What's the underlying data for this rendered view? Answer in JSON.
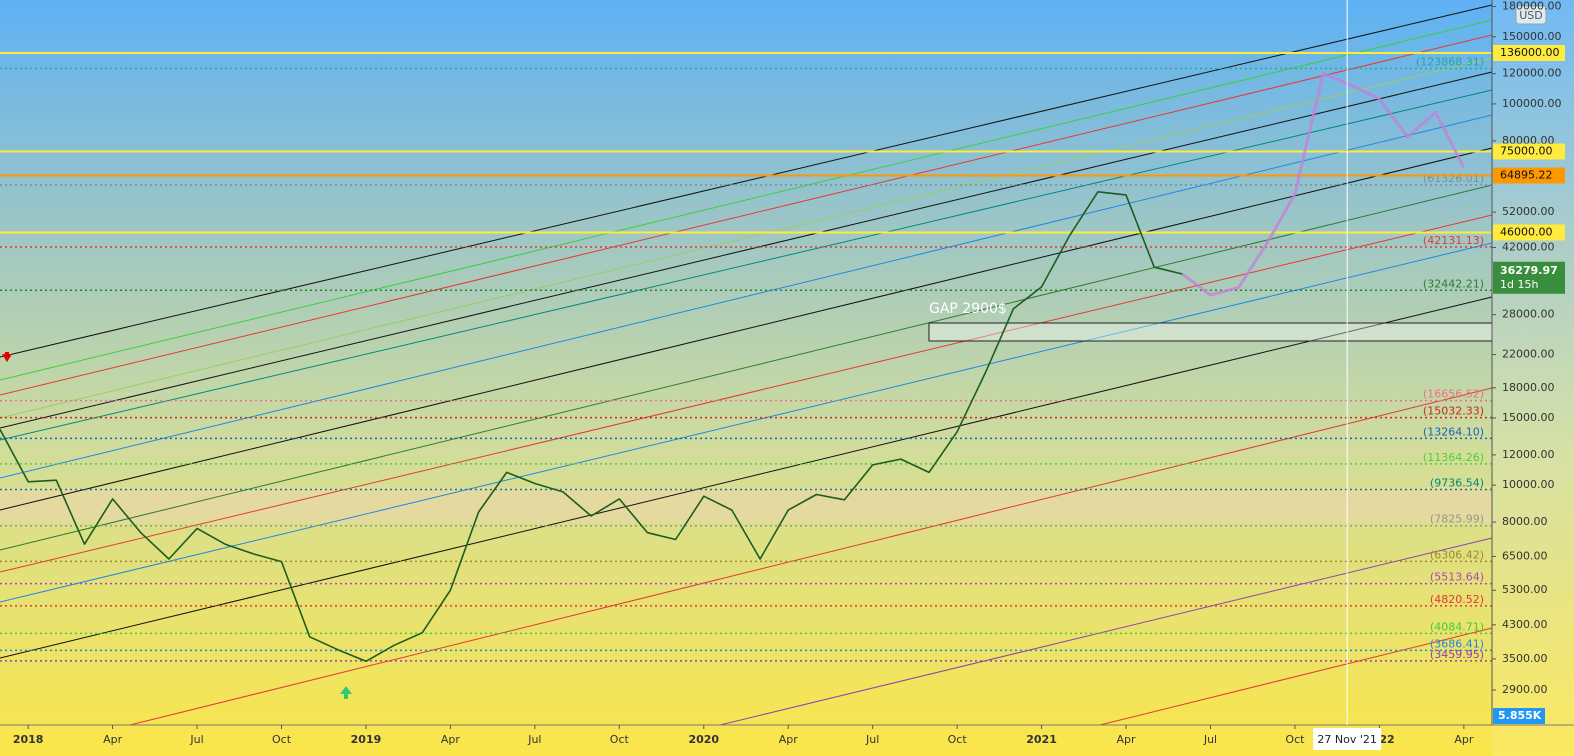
{
  "chart_data": {
    "type": "line",
    "log_scale": true,
    "currency": "USD",
    "xlim": [
      "2017-12",
      "2022-05"
    ],
    "ylim": [
      2348,
      187300
    ],
    "x": [
      "2017-12",
      "2018-01",
      "2018-02",
      "2018-03",
      "2018-04",
      "2018-05",
      "2018-06",
      "2018-07",
      "2018-08",
      "2018-09",
      "2018-10",
      "2018-11",
      "2018-12",
      "2019-01",
      "2019-02",
      "2019-03",
      "2019-04",
      "2019-05",
      "2019-06",
      "2019-07",
      "2019-08",
      "2019-09",
      "2019-10",
      "2019-11",
      "2019-12",
      "2020-01",
      "2020-02",
      "2020-03",
      "2020-04",
      "2020-05",
      "2020-06",
      "2020-07",
      "2020-08",
      "2020-09",
      "2020-10",
      "2020-11",
      "2020-12",
      "2021-01",
      "2021-02",
      "2021-03",
      "2021-04",
      "2021-05",
      "2021-06",
      "2021-07",
      "2021-08",
      "2021-09",
      "2021-10",
      "2021-11",
      "2021-12",
      "2022-01",
      "2022-02",
      "2022-03",
      "2022-04"
    ],
    "series": [
      {
        "color": "#1b5e20",
        "values": [
          14000,
          10200,
          10300,
          7000,
          9200,
          7500,
          6400,
          7700,
          7000,
          6600,
          6300,
          4000,
          3700,
          3450,
          3800,
          4100,
          5300,
          8500,
          10800,
          10100,
          9600,
          8300,
          9200,
          7500,
          7200,
          9350,
          8600,
          6400,
          8600,
          9450,
          9150,
          11300,
          11700,
          10800,
          13800,
          19700,
          29000,
          33100,
          45200,
          58800,
          57700,
          37300,
          35800,
          null,
          null,
          null,
          null,
          null,
          null,
          null,
          null,
          null,
          null
        ]
      },
      {
        "color": "#c47fd8",
        "values": [
          null,
          null,
          null,
          null,
          null,
          null,
          null,
          null,
          null,
          null,
          null,
          null,
          null,
          null,
          null,
          null,
          null,
          null,
          null,
          null,
          null,
          null,
          null,
          null,
          null,
          null,
          null,
          null,
          null,
          null,
          null,
          null,
          null,
          null,
          null,
          null,
          null,
          null,
          null,
          null,
          null,
          null,
          35800,
          31500,
          33000,
          43000,
          58000,
          120000,
          112000,
          103000,
          82000,
          95000,
          68000
        ]
      }
    ],
    "yticks": [
      {
        "value": 180000,
        "label": "180000.00"
      },
      {
        "value": 150000,
        "label": "150000.00"
      },
      {
        "value": 120000,
        "label": "120000.00"
      },
      {
        "value": 100000,
        "label": "100000.00"
      },
      {
        "value": 80000,
        "label": "80000.00"
      },
      {
        "value": 52000,
        "label": "52000.00"
      },
      {
        "value": 42000,
        "label": "42000.00"
      },
      {
        "value": 28000,
        "label": "28000.00"
      },
      {
        "value": 22000,
        "label": "22000.00"
      },
      {
        "value": 18000,
        "label": "18000.00"
      },
      {
        "value": 15000,
        "label": "15000.00"
      },
      {
        "value": 12000,
        "label": "12000.00"
      },
      {
        "value": 10000,
        "label": "10000.00"
      },
      {
        "value": 8000,
        "label": "8000.00"
      },
      {
        "value": 6500,
        "label": "6500.00"
      },
      {
        "value": 5300,
        "label": "5300.00"
      },
      {
        "value": 4300,
        "label": "4300.00"
      },
      {
        "value": 3500,
        "label": "3500.00"
      },
      {
        "value": 2900,
        "label": "2900.00"
      }
    ],
    "xticks": [
      {
        "value": "2018-01",
        "label": "2018"
      },
      {
        "value": "2018-04",
        "label": "Apr"
      },
      {
        "value": "2018-07",
        "label": "Jul"
      },
      {
        "value": "2018-10",
        "label": "Oct"
      },
      {
        "value": "2019-01",
        "label": "2019"
      },
      {
        "value": "2019-04",
        "label": "Apr"
      },
      {
        "value": "2019-07",
        "label": "Jul"
      },
      {
        "value": "2019-10",
        "label": "Oct"
      },
      {
        "value": "2020-01",
        "label": "2020"
      },
      {
        "value": "2020-04",
        "label": "Apr"
      },
      {
        "value": "2020-07",
        "label": "Jul"
      },
      {
        "value": "2020-10",
        "label": "Oct"
      },
      {
        "value": "2021-01",
        "label": "2021"
      },
      {
        "value": "2021-04",
        "label": "Apr"
      },
      {
        "value": "2021-07",
        "label": "Jul"
      },
      {
        "value": "2021-10",
        "label": "Oct"
      },
      {
        "value": "2022-01",
        "label": "2022"
      },
      {
        "value": "2022-04",
        "label": "Apr"
      }
    ],
    "levels": [
      {
        "value": 123868.31,
        "label": "(123868.31)",
        "color": "#26a69a"
      },
      {
        "value": 61326.01,
        "label": "(61326.01)",
        "color": "#78909c"
      },
      {
        "value": 42131.13,
        "label": "(42131.13)",
        "color": "#e53935"
      },
      {
        "value": 32442.21,
        "label": "(32442.21)",
        "color": "#2e7d32"
      },
      {
        "value": 16656.52,
        "label": "(16656.52)",
        "color": "#ec6f8e"
      },
      {
        "value": 15032.33,
        "label": "(15032.33)",
        "color": "#c62828"
      },
      {
        "value": 13264.1,
        "label": "(13264.10)",
        "color": "#1565c0"
      },
      {
        "value": 11364.26,
        "label": "(11364.26)",
        "color": "#4cd137"
      },
      {
        "value": 9736.54,
        "label": "(9736.54)",
        "color": "#00897b"
      },
      {
        "value": 7825.99,
        "label": "(7825.99)",
        "color": "#8d9b8a"
      },
      {
        "value": 6306.42,
        "label": "(6306.42)",
        "color": "#a1882b"
      },
      {
        "value": 5513.64,
        "label": "(5513.64)",
        "color": "#ab47bc"
      },
      {
        "value": 4820.52,
        "label": "(4820.52)",
        "color": "#e53935"
      },
      {
        "value": 4084.71,
        "label": "(4084.71)",
        "color": "#3ccf3c"
      },
      {
        "value": 3686.41,
        "label": "(3686.41)",
        "color": "#1e88e5"
      },
      {
        "value": 3459.95,
        "label": "(3459.95)",
        "color": "#8e44ad"
      }
    ],
    "marked_levels": [
      {
        "value": 136000,
        "label": "136000.00",
        "color": "#ffeb3b"
      },
      {
        "value": 75000,
        "label": "75000.00",
        "color": "#ffeb3b"
      },
      {
        "value": 64895.22,
        "label": "64895.22",
        "color": "#ff9800"
      },
      {
        "value": 46000,
        "label": "46000.00",
        "color": "#ffeb3b"
      }
    ],
    "last_price": {
      "value": 36279.97,
      "countdown": "1d 15h",
      "color": "#388e3c"
    },
    "volume_label": "5.855K",
    "gap": {
      "label": "GAP 2900$",
      "range": [
        23880,
        26620
      ],
      "start": "2020-09"
    },
    "crosshair": {
      "x": "2021-11-27",
      "label": "27 Nov '21"
    }
  }
}
